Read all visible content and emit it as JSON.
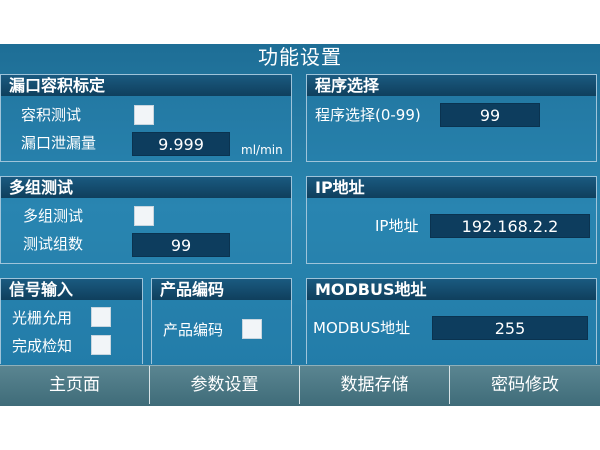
{
  "screen": {
    "title": "功能设置"
  },
  "panels": {
    "leak_volume": {
      "title": "漏口容积标定",
      "volume_test_label": "容积测试",
      "leak_amount_label": "漏口泄漏量",
      "leak_amount_value": "9.999",
      "leak_amount_unit": "ml/min"
    },
    "program": {
      "title": "程序选择",
      "select_label": "程序选择(0-99)",
      "select_value": "99"
    },
    "multi_test": {
      "title": "多组测试",
      "multi_label": "多组测试",
      "groups_label": "测试组数",
      "groups_value": "99"
    },
    "ip": {
      "title": "IP地址",
      "ip_label": "IP地址",
      "ip_value": "192.168.2.2"
    },
    "signal_input": {
      "title": "信号输入",
      "grating_label": "光栅允用",
      "completion_label": "完成检知"
    },
    "product_code": {
      "title": "产品编码",
      "code_label": "产品编码"
    },
    "modbus": {
      "title": "MODBUS地址",
      "address_label": "MODBUS地址",
      "address_value": "255"
    }
  },
  "nav": {
    "home": "主页面",
    "params": "参数设置",
    "storage": "数据存储",
    "password": "密码修改"
  }
}
